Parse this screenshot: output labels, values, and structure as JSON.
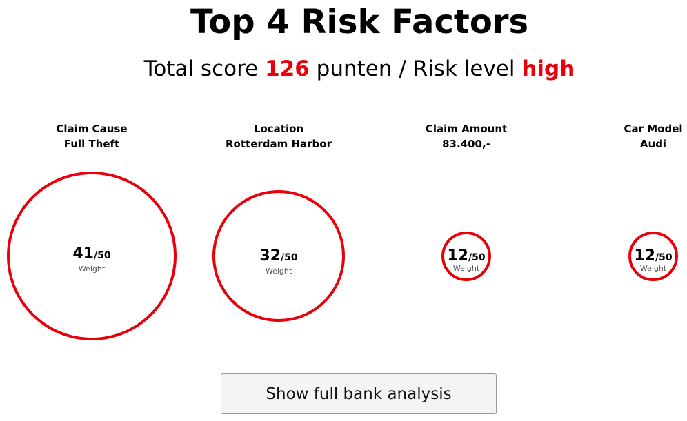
{
  "header": {
    "title": "Top 4 Risk Factors",
    "score_prefix": "Total score ",
    "score_value": "126",
    "score_mid": " punten / Risk level ",
    "risk_level": "high"
  },
  "accent_color": "#e8000b",
  "factors": [
    {
      "name": "Claim Cause",
      "value": "Full Theft",
      "score": "41",
      "max": "/50",
      "weight_label": "Weight"
    },
    {
      "name": "Location",
      "value": "Rotterdam Harbor",
      "score": "32",
      "max": "/50",
      "weight_label": "Weight"
    },
    {
      "name": "Claim Amount",
      "value": "83.400,-",
      "score": "12",
      "max": "/50",
      "weight_label": "Weight"
    },
    {
      "name": "Car Model",
      "value": "Audi",
      "score": "12",
      "max": "/50",
      "weight_label": "Weight"
    }
  ],
  "actions": {
    "analysis_button": "Show full bank analysis"
  }
}
